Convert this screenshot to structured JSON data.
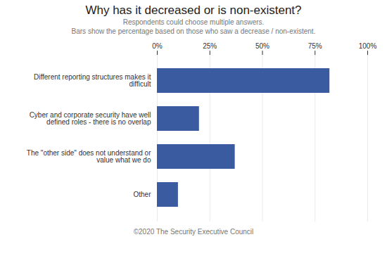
{
  "chart_data": {
    "type": "bar",
    "orientation": "horizontal",
    "title": "Why has it decreased or is non-existent?",
    "subtitle": [
      "Respondents could choose multiple answers.",
      "Bars show the percentage based on those who saw a decrease / non-existent."
    ],
    "footer": "©2020 The Security Executive Council",
    "categories": [
      "Different reporting structures makes it\ndifficult",
      "Cyber and corporate security have well\ndefined roles - there is no overlap",
      "The \"other side\" does not understand or\nvalue what we do",
      "Other"
    ],
    "values": [
      82,
      20,
      37,
      10
    ],
    "color": "#3A5BA0",
    "xlim": [
      0,
      100
    ],
    "xticks": [
      {
        "value": 0,
        "label": "0%"
      },
      {
        "value": 25,
        "label": "25%"
      },
      {
        "value": 50,
        "label": "50%"
      },
      {
        "value": 75,
        "label": "75%"
      },
      {
        "value": 100,
        "label": "100%"
      }
    ],
    "grid": true,
    "tick_labels": true
  }
}
